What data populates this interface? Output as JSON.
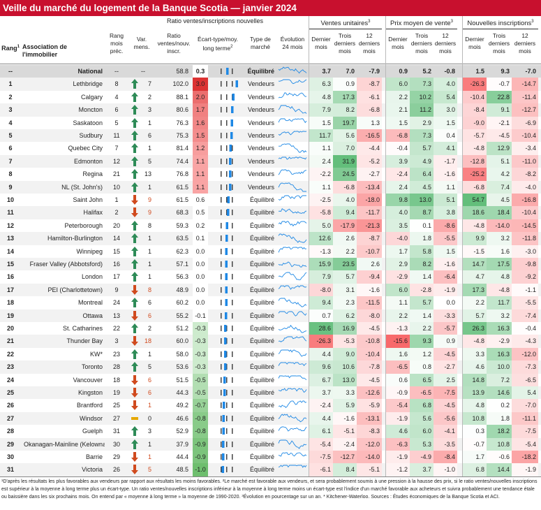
{
  "title": "Veille du marché du logement de la Banque Scotia — janvier 2024",
  "header": {
    "rang": "Rang",
    "rang_sup": "1",
    "assoc": "Association de l'immobilier",
    "ratio_group": "Ratio ventes/inscriptions nouvelles",
    "ventes_group": "Ventes unitaires",
    "ventes_sup": "3",
    "prix_group": "Prix moyen de vente",
    "prix_sup": "3",
    "nouv_group": "Nouvelles inscriptions",
    "nouv_sup": "3",
    "rang_prec": "Rang mois préc.",
    "var": "Var. mens.",
    "ratio": "Ratio ventes/nouv. inscr.",
    "ecart": "Écart-type/moy. long terme",
    "ecart_sup": "2",
    "type": "Type de marché",
    "evol": "Évolution 24 mois",
    "dernier": "Dernier mois",
    "trois": "Trois derniers mois",
    "douze": "12 derniers mois"
  },
  "footer": "¹D'après les résultats les plus favorables aux vendeurs par rapport aux résultats les moins favorables. ²Le marché est favorable aux vendeurs, et sera probablement soumis à une pression à la hausse des prix, si le ratio ventes/nouvelles inscriptions est supérieur à la moyenne à long terme plus un écart-type. Un ratio ventes/nouvelles inscriptions inférieur à la moyenne à long terme moins un écart-type est l'indice d'un marché favorable aux acheteurs et suivra probablement une tendance étale ou baissière dans les six prochains mois. On entend par « moyenne à long terme » la moyenne de 1990-2020. ³Évolution en pourcentage sur un an. * Kitchener-Waterloo. Sources : Études économiques de la Banque Scotia et ACI.",
  "colors": {
    "brand_red": "#c8102e",
    "arrow_up": "#2e8b57",
    "arrow_down": "#d04a1e",
    "arrow_flat": "#e6a800"
  },
  "chart_data": {
    "type": "table",
    "national": {
      "rank": "--",
      "name": "National",
      "prev": "--",
      "var": "--",
      "ratio": "58.8",
      "ecart": "0.3",
      "market": "Équilibré",
      "sales": [
        "3.7",
        "7.0",
        "-7.9"
      ],
      "price": [
        "0.9",
        "5.2",
        "-0.8"
      ],
      "listings": [
        "1.5",
        "9.3",
        "-7.0"
      ]
    },
    "rows": [
      {
        "rank": "1",
        "name": "Lethbridge",
        "prev": "8",
        "dir": "up",
        "var": "7",
        "ratio": "102.0",
        "ecart": "3.0",
        "market": "Vendeurs",
        "sales": [
          "6.3",
          "0.9",
          "-8.7"
        ],
        "price": [
          "6.0",
          "7.3",
          "4.0"
        ],
        "listings": [
          "-26.3",
          "-0.7",
          "-14.7"
        ]
      },
      {
        "rank": "2",
        "name": "Calgary",
        "prev": "4",
        "dir": "up",
        "var": "2",
        "ratio": "88.1",
        "ecart": "2.0",
        "market": "Vendeurs",
        "sales": [
          "4.8",
          "17.3",
          "-6.1"
        ],
        "price": [
          "2.2",
          "10.2",
          "5.4"
        ],
        "listings": [
          "-10.4",
          "22.8",
          "-11.4"
        ]
      },
      {
        "rank": "3",
        "name": "Moncton",
        "prev": "6",
        "dir": "up",
        "var": "3",
        "ratio": "80.6",
        "ecart": "1.7",
        "market": "Vendeurs",
        "sales": [
          "7.9",
          "8.2",
          "-6.8"
        ],
        "price": [
          "2.1",
          "11.2",
          "3.0"
        ],
        "listings": [
          "-8.4",
          "9.1",
          "-12.7"
        ]
      },
      {
        "rank": "4",
        "name": "Saskatoon",
        "prev": "5",
        "dir": "up",
        "var": "1",
        "ratio": "76.3",
        "ecart": "1.6",
        "market": "Vendeurs",
        "sales": [
          "1.5",
          "19.7",
          "1.3"
        ],
        "price": [
          "1.5",
          "2.9",
          "1.5"
        ],
        "listings": [
          "-9.0",
          "-2.1",
          "-6.9"
        ]
      },
      {
        "rank": "5",
        "name": "Sudbury",
        "prev": "11",
        "dir": "up",
        "var": "6",
        "ratio": "75.3",
        "ecart": "1.5",
        "market": "Vendeurs",
        "sales": [
          "11.7",
          "5.6",
          "-16.5"
        ],
        "price": [
          "-6.8",
          "7.3",
          "0.4"
        ],
        "listings": [
          "-5.7",
          "-4.5",
          "-10.4"
        ]
      },
      {
        "rank": "6",
        "name": "Quebec City",
        "prev": "7",
        "dir": "up",
        "var": "1",
        "ratio": "81.4",
        "ecart": "1.2",
        "market": "Vendeurs",
        "sales": [
          "1.1",
          "7.0",
          "-4.4"
        ],
        "price": [
          "-0.4",
          "5.7",
          "4.1"
        ],
        "listings": [
          "-4.8",
          "12.9",
          "-3.4"
        ]
      },
      {
        "rank": "7",
        "name": "Edmonton",
        "prev": "12",
        "dir": "up",
        "var": "5",
        "ratio": "74.4",
        "ecart": "1.1",
        "market": "Vendeurs",
        "sales": [
          "2.4",
          "31.9",
          "-5.2"
        ],
        "price": [
          "3.9",
          "4.9",
          "-1.7"
        ],
        "listings": [
          "-12.8",
          "5.1",
          "-11.0"
        ]
      },
      {
        "rank": "8",
        "name": "Regina",
        "prev": "21",
        "dir": "up",
        "var": "13",
        "ratio": "76.8",
        "ecart": "1.1",
        "market": "Vendeurs",
        "sales": [
          "-2.2",
          "24.5",
          "-2.7"
        ],
        "price": [
          "-2.4",
          "6.4",
          "-1.6"
        ],
        "listings": [
          "-25.2",
          "4.2",
          "-8.2"
        ]
      },
      {
        "rank": "9",
        "name": "NL (St. John's)",
        "prev": "10",
        "dir": "up",
        "var": "1",
        "ratio": "61.5",
        "ecart": "1.1",
        "market": "Vendeurs",
        "sales": [
          "1.1",
          "-6.8",
          "-13.4"
        ],
        "price": [
          "2.4",
          "4.5",
          "1.1"
        ],
        "listings": [
          "-6.8",
          "7.4",
          "-4.0"
        ]
      },
      {
        "rank": "10",
        "name": "Saint John",
        "prev": "1",
        "dir": "down",
        "var": "9",
        "ratio": "61.5",
        "ecart": "0.6",
        "market": "Équilibré",
        "sales": [
          "-2.5",
          "4.0",
          "-18.0"
        ],
        "price": [
          "9.8",
          "13.0",
          "5.1"
        ],
        "listings": [
          "54.7",
          "4.5",
          "-16.8"
        ]
      },
      {
        "rank": "11",
        "name": "Halifax",
        "prev": "2",
        "dir": "down",
        "var": "9",
        "ratio": "68.3",
        "ecart": "0.5",
        "market": "Équilibré",
        "sales": [
          "-5.8",
          "9.4",
          "-11.7"
        ],
        "price": [
          "4.0",
          "8.7",
          "3.8"
        ],
        "listings": [
          "18.6",
          "18.4",
          "-10.4"
        ]
      },
      {
        "rank": "12",
        "name": "Peterborough",
        "prev": "20",
        "dir": "up",
        "var": "8",
        "ratio": "59.3",
        "ecart": "0.2",
        "market": "Équilibré",
        "sales": [
          "5.0",
          "-17.9",
          "-21.3"
        ],
        "price": [
          "3.5",
          "0.1",
          "-8.6"
        ],
        "listings": [
          "-4.8",
          "-14.0",
          "-14.5"
        ]
      },
      {
        "rank": "13",
        "name": "Hamilton-Burlington",
        "prev": "14",
        "dir": "up",
        "var": "1",
        "ratio": "63.5",
        "ecart": "0.1",
        "market": "Équilibré",
        "sales": [
          "12.6",
          "2.6",
          "-8.7"
        ],
        "price": [
          "-4.0",
          "1.8",
          "-5.5"
        ],
        "listings": [
          "9.9",
          "3.2",
          "-11.8"
        ]
      },
      {
        "rank": "14",
        "name": "Winnipeg",
        "prev": "15",
        "dir": "up",
        "var": "1",
        "ratio": "62.3",
        "ecart": "0.0",
        "market": "Équilibré",
        "sales": [
          "-1.3",
          "2.2",
          "-10.7"
        ],
        "price": [
          "1.7",
          "5.8",
          "1.5"
        ],
        "listings": [
          "-1.5",
          "1.6",
          "-3.0"
        ]
      },
      {
        "rank": "15",
        "name": "Fraser Valley (Abbotsford)",
        "prev": "16",
        "dir": "up",
        "var": "1",
        "ratio": "57.1",
        "ecart": "0.0",
        "market": "Équilibré",
        "sales": [
          "15.9",
          "23.5",
          "2.6"
        ],
        "price": [
          "2.9",
          "8.2",
          "-1.6"
        ],
        "listings": [
          "14.7",
          "17.5",
          "-9.8"
        ]
      },
      {
        "rank": "16",
        "name": "London",
        "prev": "17",
        "dir": "up",
        "var": "1",
        "ratio": "56.3",
        "ecart": "0.0",
        "market": "Équilibré",
        "sales": [
          "7.9",
          "5.7",
          "-9.4"
        ],
        "price": [
          "-2.9",
          "1.4",
          "-6.4"
        ],
        "listings": [
          "4.7",
          "4.8",
          "-9.2"
        ]
      },
      {
        "rank": "17",
        "name": "PEI (Charlottetown)",
        "prev": "9",
        "dir": "down",
        "var": "8",
        "ratio": "48.9",
        "ecart": "0.0",
        "market": "Équilibré",
        "sales": [
          "-8.0",
          "3.1",
          "-1.6"
        ],
        "price": [
          "6.0",
          "-2.8",
          "-1.9"
        ],
        "listings": [
          "17.3",
          "-4.8",
          "-1.1"
        ]
      },
      {
        "rank": "18",
        "name": "Montreal",
        "prev": "24",
        "dir": "up",
        "var": "6",
        "ratio": "60.2",
        "ecart": "0.0",
        "market": "Équilibré",
        "sales": [
          "9.4",
          "2.3",
          "-11.5"
        ],
        "price": [
          "1.1",
          "5.7",
          "0.0"
        ],
        "listings": [
          "2.2",
          "11.7",
          "-5.5"
        ]
      },
      {
        "rank": "19",
        "name": "Ottawa",
        "prev": "13",
        "dir": "down",
        "var": "6",
        "ratio": "55.2",
        "ecart": "-0.1",
        "market": "Équilibré",
        "sales": [
          "0.7",
          "6.2",
          "-8.0"
        ],
        "price": [
          "2.2",
          "1.4",
          "-3.3"
        ],
        "listings": [
          "5.7",
          "3.2",
          "-7.4"
        ]
      },
      {
        "rank": "20",
        "name": "St. Catharines",
        "prev": "22",
        "dir": "up",
        "var": "2",
        "ratio": "51.2",
        "ecart": "-0.3",
        "market": "Équilibré",
        "sales": [
          "28.6",
          "16.9",
          "-4.5"
        ],
        "price": [
          "-1.3",
          "2.2",
          "-5.7"
        ],
        "listings": [
          "26.3",
          "16.3",
          "-0.4"
        ]
      },
      {
        "rank": "21",
        "name": "Thunder Bay",
        "prev": "3",
        "dir": "down",
        "var": "18",
        "ratio": "60.0",
        "ecart": "-0.3",
        "market": "Équilibré",
        "sales": [
          "-26.3",
          "-5.3",
          "-10.8"
        ],
        "price": [
          "-15.6",
          "9.3",
          "0.9"
        ],
        "listings": [
          "-4.8",
          "-2.9",
          "-4.3"
        ]
      },
      {
        "rank": "22",
        "name": "KW*",
        "prev": "23",
        "dir": "up",
        "var": "1",
        "ratio": "58.0",
        "ecart": "-0.3",
        "market": "Équilibré",
        "sales": [
          "4.4",
          "9.0",
          "-10.4"
        ],
        "price": [
          "1.6",
          "1.2",
          "-4.5"
        ],
        "listings": [
          "3.3",
          "16.3",
          "-12.0"
        ]
      },
      {
        "rank": "23",
        "name": "Toronto",
        "prev": "28",
        "dir": "up",
        "var": "5",
        "ratio": "53.6",
        "ecart": "-0.3",
        "market": "Équilibré",
        "sales": [
          "9.6",
          "10.6",
          "-7.8"
        ],
        "price": [
          "-6.5",
          "0.8",
          "-2.7"
        ],
        "listings": [
          "4.6",
          "10.0",
          "-7.3"
        ]
      },
      {
        "rank": "24",
        "name": "Vancouver",
        "prev": "18",
        "dir": "down",
        "var": "6",
        "ratio": "51.5",
        "ecart": "-0.5",
        "market": "Équilibré",
        "sales": [
          "6.7",
          "13.0",
          "-4.5"
        ],
        "price": [
          "0.6",
          "6.5",
          "2.5"
        ],
        "listings": [
          "14.8",
          "7.2",
          "-6.5"
        ]
      },
      {
        "rank": "25",
        "name": "Kingston",
        "prev": "19",
        "dir": "down",
        "var": "6",
        "ratio": "44.3",
        "ecart": "-0.5",
        "market": "Équilibré",
        "sales": [
          "3.7",
          "3.3",
          "-12.6"
        ],
        "price": [
          "-0.9",
          "-6.5",
          "-7.5"
        ],
        "listings": [
          "13.9",
          "14.6",
          "5.4"
        ]
      },
      {
        "rank": "26",
        "name": "Brantford",
        "prev": "25",
        "dir": "down",
        "var": "1",
        "ratio": "49.2",
        "ecart": "-0.7",
        "market": "Équilibré",
        "sales": [
          "-2.4",
          "5.9",
          "-5.9"
        ],
        "price": [
          "-5.4",
          "6.8",
          "-4.5"
        ],
        "listings": [
          "4.8",
          "0.2",
          "-7.0"
        ]
      },
      {
        "rank": "27",
        "name": "Windsor",
        "prev": "27",
        "dir": "flat",
        "var": "0",
        "ratio": "46.6",
        "ecart": "-0.8",
        "market": "Équilibré",
        "sales": [
          "4.4",
          "-1.6",
          "-13.1"
        ],
        "price": [
          "-1.9",
          "5.6",
          "-5.6"
        ],
        "listings": [
          "10.8",
          "1.8",
          "-11.1"
        ]
      },
      {
        "rank": "28",
        "name": "Guelph",
        "prev": "31",
        "dir": "up",
        "var": "3",
        "ratio": "52.9",
        "ecart": "-0.8",
        "market": "Équilibré",
        "sales": [
          "6.1",
          "-5.1",
          "-8.3"
        ],
        "price": [
          "4.6",
          "6.0",
          "-4.1"
        ],
        "listings": [
          "0.3",
          "18.2",
          "-7.5"
        ]
      },
      {
        "rank": "29",
        "name": "Okanagan-Mainline (Kelowna)",
        "prev": "30",
        "dir": "up",
        "var": "1",
        "ratio": "37.9",
        "ecart": "-0.9",
        "market": "Équilibré",
        "sales": [
          "-5.4",
          "-2.4",
          "-12.0"
        ],
        "price": [
          "-6.3",
          "5.3",
          "-3.5"
        ],
        "listings": [
          "-0.7",
          "10.8",
          "-5.4"
        ]
      },
      {
        "rank": "30",
        "name": "Barrie",
        "prev": "29",
        "dir": "down",
        "var": "1",
        "ratio": "44.4",
        "ecart": "-0.9",
        "market": "Équilibré",
        "sales": [
          "-7.5",
          "-12.7",
          "-14.0"
        ],
        "price": [
          "-1.9",
          "-4.9",
          "-8.4"
        ],
        "listings": [
          "1.7",
          "-0.6",
          "-18.2"
        ]
      },
      {
        "rank": "31",
        "name": "Victoria",
        "prev": "26",
        "dir": "down",
        "var": "5",
        "ratio": "48.5",
        "ecart": "-1.0",
        "market": "Équilibré",
        "sales": [
          "-6.1",
          "8.4",
          "-5.1"
        ],
        "price": [
          "-1.2",
          "3.7",
          "-1.0"
        ],
        "listings": [
          "6.8",
          "14.4",
          "-1.9"
        ]
      }
    ]
  }
}
